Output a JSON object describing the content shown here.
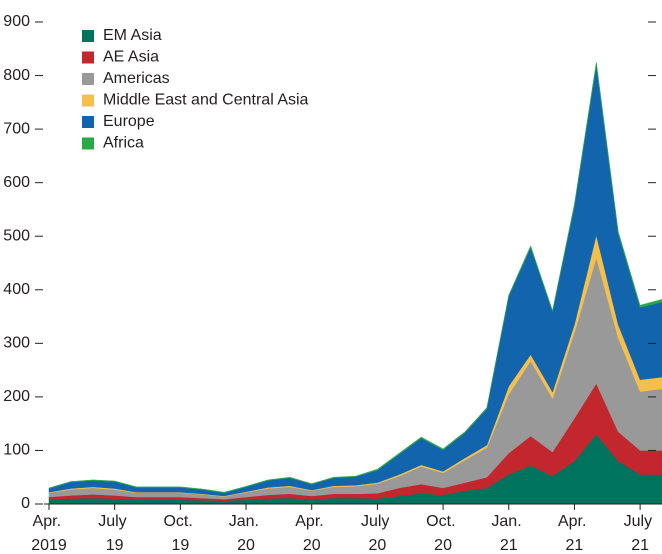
{
  "chart_data": {
    "type": "stacked_area",
    "categories": [
      "Apr. 2019",
      null,
      null,
      "July 19",
      null,
      null,
      "Oct. 19",
      null,
      null,
      "Jan. 20",
      null,
      null,
      "Apr. 20",
      null,
      null,
      "July 20",
      null,
      null,
      "Oct. 20",
      null,
      null,
      "Jan. 21",
      null,
      null,
      "Apr. 21",
      null,
      null,
      "July 21",
      null
    ],
    "series": [
      {
        "name": "EM Asia",
        "color": "#00735f",
        "values": [
          8,
          10,
          11,
          10,
          8,
          8,
          8,
          7,
          6,
          8,
          10,
          11,
          9,
          11,
          11,
          10,
          15,
          20,
          17,
          25,
          30,
          55,
          72,
          52,
          80,
          130,
          80,
          55,
          55
        ]
      },
      {
        "name": "AE Asia",
        "color": "#c1272d",
        "values": [
          5,
          6,
          7,
          6,
          5,
          5,
          5,
          4,
          3,
          5,
          7,
          8,
          6,
          8,
          8,
          10,
          15,
          17,
          13,
          15,
          20,
          40,
          55,
          45,
          80,
          95,
          55,
          45,
          45
        ]
      },
      {
        "name": "Americas",
        "color": "#999999",
        "values": [
          8,
          11,
          12,
          11,
          8,
          8,
          8,
          7,
          5,
          9,
          12,
          13,
          10,
          13,
          14,
          18,
          22,
          33,
          28,
          42,
          55,
          110,
          140,
          100,
          160,
          235,
          175,
          110,
          115
        ]
      },
      {
        "name": "Middle East and Central Asia",
        "color": "#f4c04b",
        "values": [
          1,
          2,
          2,
          2,
          1,
          1,
          1,
          1,
          1,
          1,
          2,
          2,
          1,
          2,
          2,
          2,
          3,
          3,
          3,
          4,
          5,
          15,
          12,
          12,
          15,
          42,
          25,
          22,
          22
        ]
      },
      {
        "name": "Europe",
        "color": "#1265ad",
        "values": [
          7,
          12,
          12,
          13,
          9,
          9,
          9,
          8,
          6,
          9,
          13,
          15,
          11,
          15,
          16,
          23,
          38,
          50,
          40,
          47,
          68,
          168,
          200,
          150,
          222,
          318,
          170,
          135,
          140
        ]
      },
      {
        "name": "Africa",
        "color": "#2aa845",
        "values": [
          1,
          1,
          1,
          1,
          1,
          1,
          1,
          1,
          1,
          1,
          1,
          1,
          1,
          1,
          1,
          2,
          2,
          2,
          2,
          2,
          2,
          2,
          3,
          2,
          3,
          5,
          4,
          4,
          5
        ]
      }
    ],
    "ylim": [
      0,
      900
    ],
    "yticks": [
      0,
      100,
      200,
      300,
      400,
      500,
      600,
      700,
      800,
      900
    ],
    "legend": "upper left"
  }
}
